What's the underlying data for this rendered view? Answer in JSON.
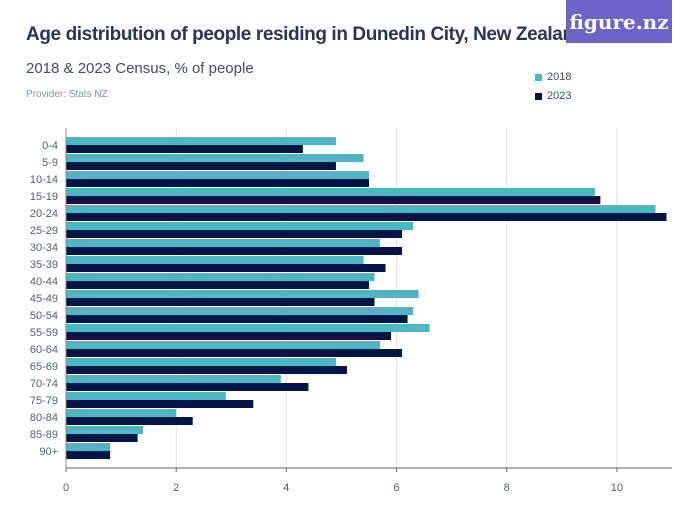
{
  "header": {
    "title": "Age distribution of people residing in Dunedin City, New Zealand",
    "subtitle": "2018 & 2023 Census, % of people",
    "provider": "Provider: Stats NZ",
    "logo": "figure.nz"
  },
  "chart_data": {
    "type": "bar",
    "orientation": "horizontal",
    "title": "Age distribution of people residing in Dunedin City, New Zealand",
    "subtitle": "2018 & 2023 Census, % of people",
    "categories": [
      "0-4",
      "5-9",
      "10-14",
      "15-19",
      "20-24",
      "25-29",
      "30-34",
      "35-39",
      "40-44",
      "45-49",
      "50-54",
      "55-59",
      "60-64",
      "65-69",
      "70-74",
      "75-79",
      "80-84",
      "85-89",
      "90+"
    ],
    "series": [
      {
        "name": "2018",
        "color": "#4db6c4",
        "values": [
          4.9,
          5.4,
          5.5,
          9.6,
          10.7,
          6.3,
          5.7,
          5.4,
          5.6,
          6.4,
          6.3,
          6.6,
          5.7,
          4.9,
          3.9,
          2.9,
          2.0,
          1.4,
          0.8
        ]
      },
      {
        "name": "2023",
        "color": "#041545",
        "values": [
          4.3,
          4.9,
          5.5,
          9.7,
          10.9,
          6.1,
          6.1,
          5.8,
          5.5,
          5.6,
          6.2,
          5.9,
          6.1,
          5.1,
          4.4,
          3.4,
          2.3,
          1.3,
          0.8
        ]
      }
    ],
    "xlim": [
      0,
      11
    ],
    "xticks": [
      "0",
      "2",
      "4",
      "6",
      "8",
      "10"
    ],
    "grid": true,
    "legend": "top-right"
  }
}
